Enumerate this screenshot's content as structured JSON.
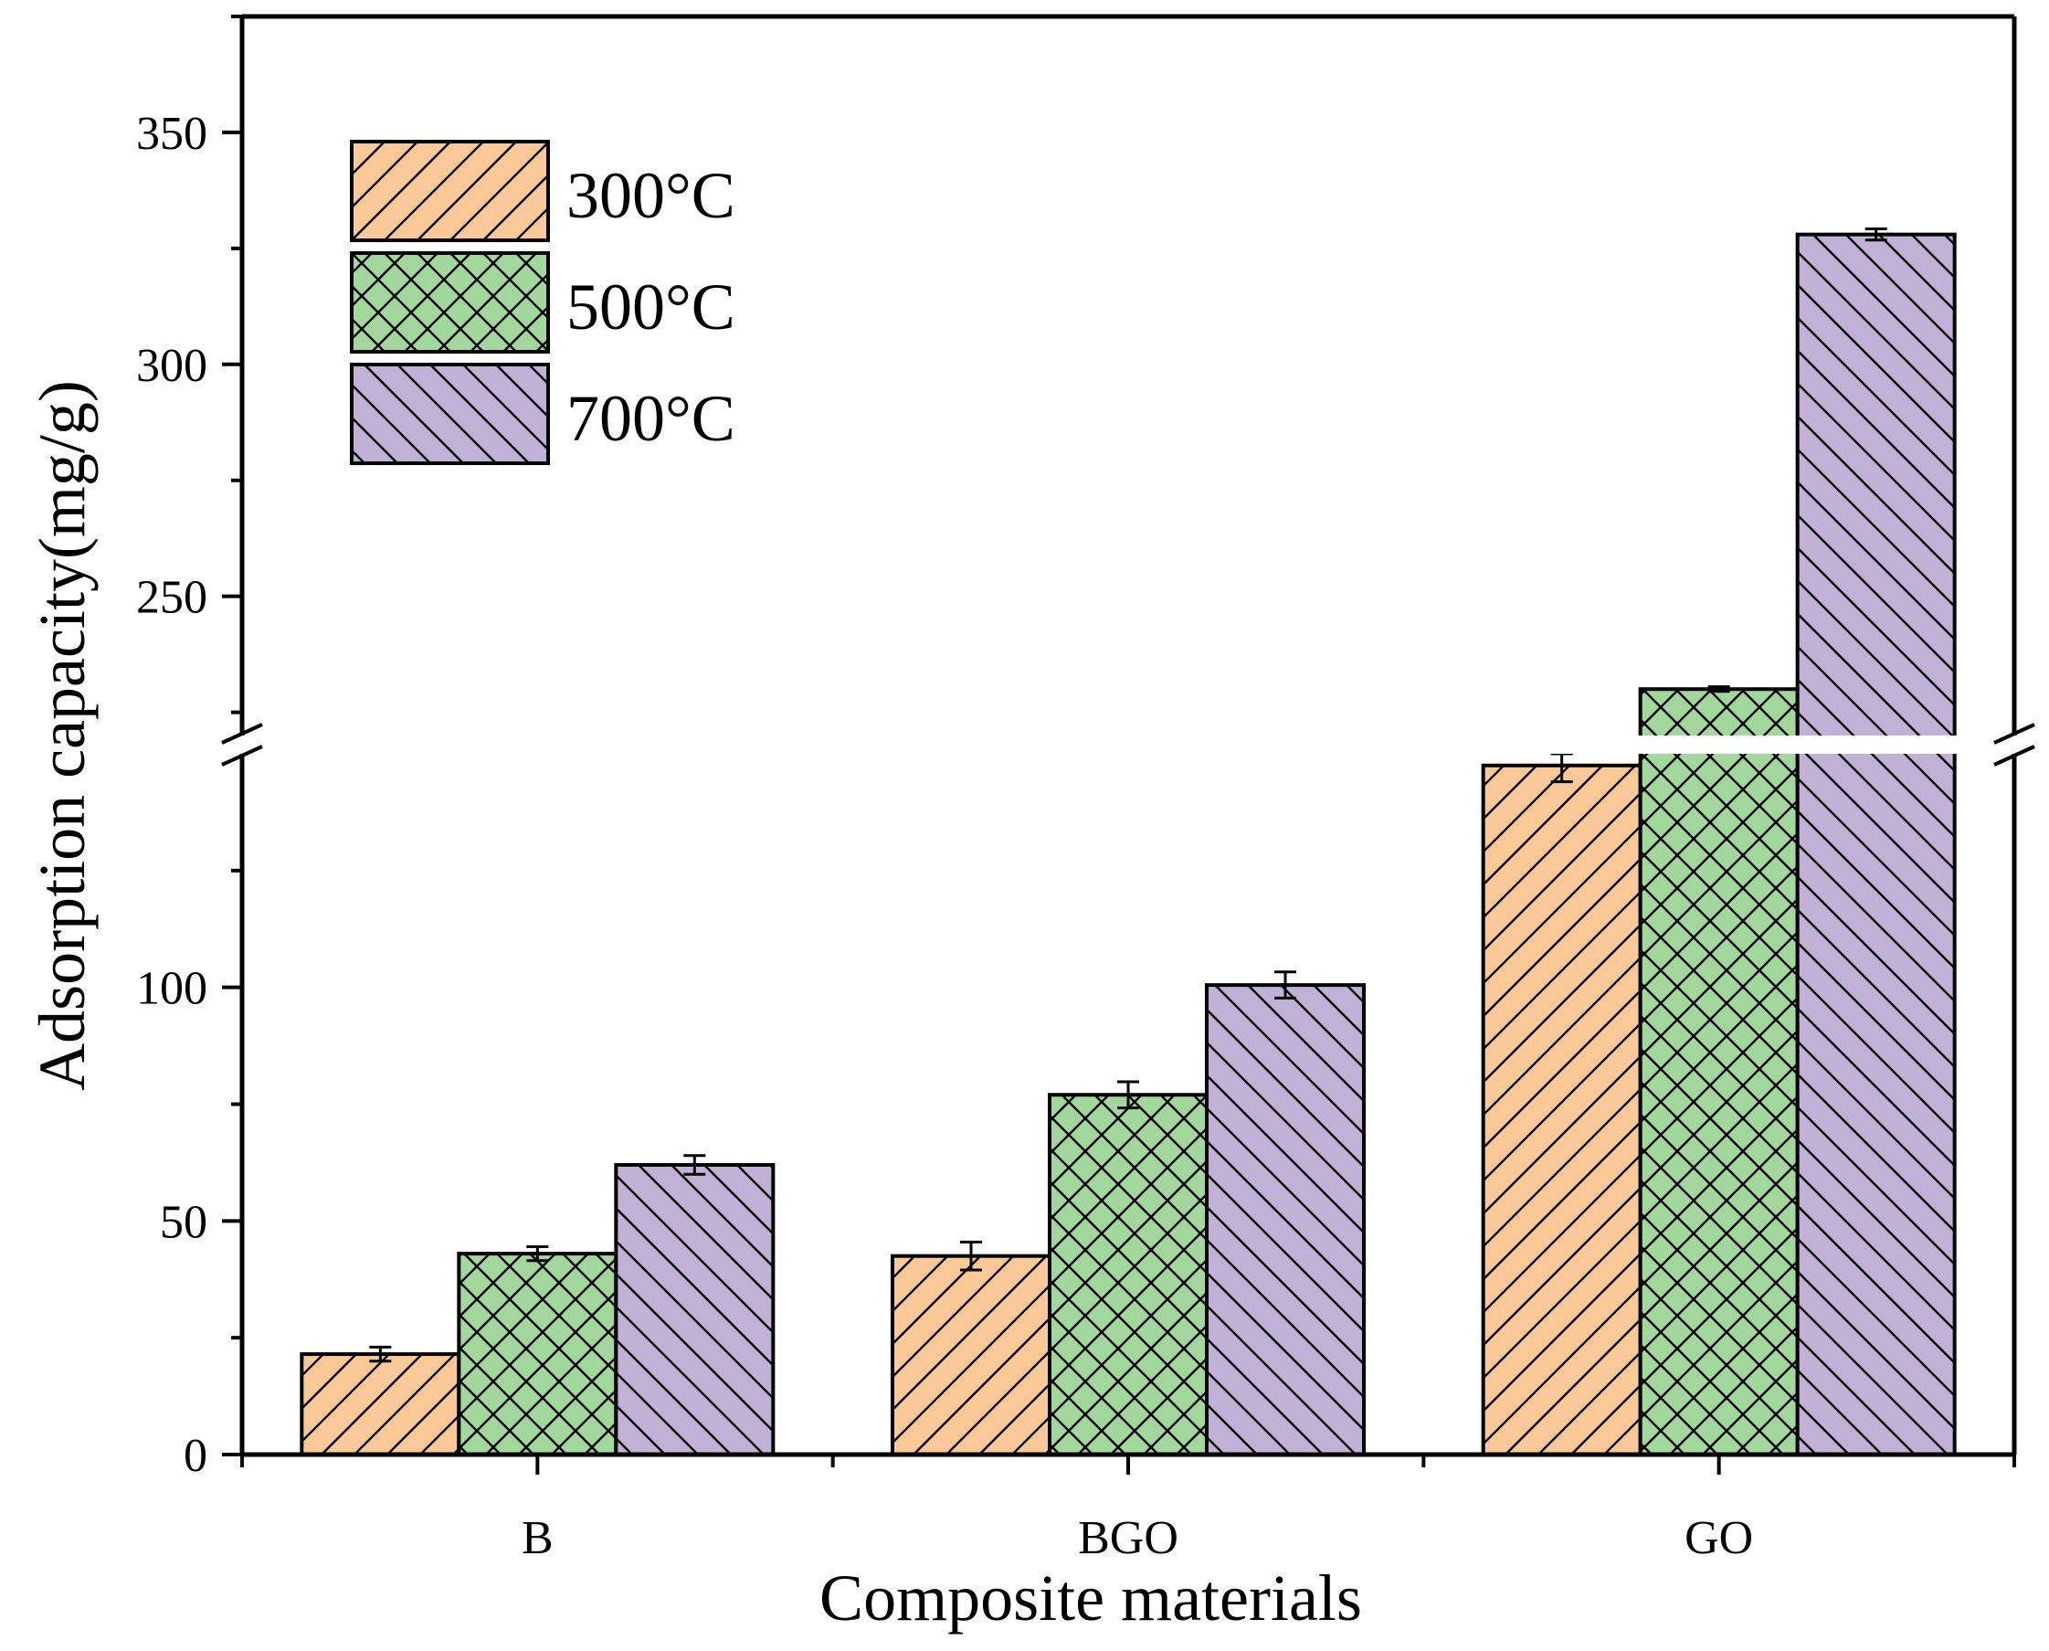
{
  "chart_data": {
    "type": "bar",
    "title": "",
    "xlabel": "Composite materials",
    "ylabel": "Adsorption capacity(mg/g)",
    "categories": [
      "B",
      "BGO",
      "GO"
    ],
    "series": [
      {
        "name": "300°C",
        "color": "#FBC898",
        "pattern": "forward-diagonal",
        "values": [
          21.5,
          42.5,
          147.5
        ],
        "errors": [
          1.5,
          3.0,
          3.5
        ]
      },
      {
        "name": "500°C",
        "color": "#A3D89D",
        "pattern": "cross-hatch",
        "values": [
          43.0,
          77.0,
          230.0
        ],
        "errors": [
          1.5,
          2.8,
          0.5
        ]
      },
      {
        "name": "700°C",
        "color": "#C1B1D6",
        "pattern": "backward-diagonal",
        "values": [
          62.0,
          100.5,
          328.0
        ],
        "errors": [
          2.0,
          2.8,
          1.2
        ]
      }
    ],
    "y_axis": {
      "lower_segment": {
        "range": [
          0,
          150
        ],
        "ticks": [
          0,
          50,
          100
        ],
        "tick_labels": [
          "0",
          "50",
          "100"
        ]
      },
      "upper_segment": {
        "range": [
          220,
          375
        ],
        "ticks": [
          250,
          300,
          350
        ],
        "tick_labels": [
          "250",
          "300",
          "350"
        ]
      },
      "break_between": [
        150,
        220
      ]
    },
    "legend_position": "top-left",
    "grid": false
  }
}
